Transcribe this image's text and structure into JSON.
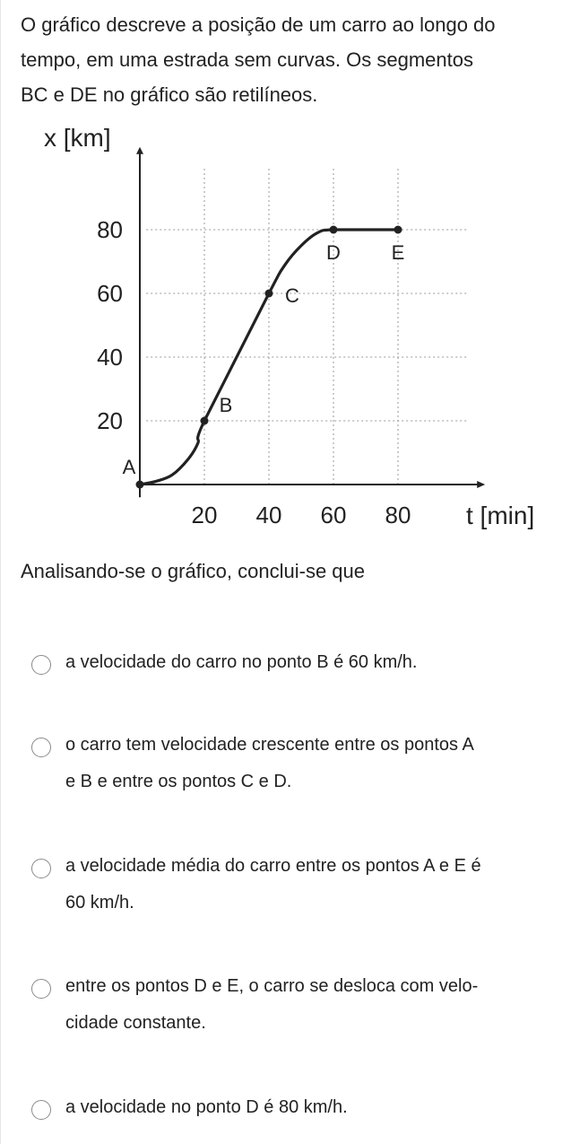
{
  "question": {
    "lines": [
      "O gráfico descreve a posição de um carro ao longo do",
      "tempo, em uma estrada sem curvas. Os segmentos",
      "BC e DE no gráfico são retilíneos."
    ]
  },
  "chart_data": {
    "type": "line",
    "xlabel": "t [min]",
    "ylabel": "x [km]",
    "x_ticks": [
      "20",
      "40",
      "60",
      "80"
    ],
    "y_ticks": [
      "20",
      "40",
      "60",
      "80"
    ],
    "xlim": [
      0,
      107
    ],
    "ylim": [
      0,
      106
    ],
    "grid": true,
    "series": [
      {
        "x": [
          0,
          5,
          10,
          15,
          18,
          20,
          40,
          45,
          50,
          55,
          60,
          80
        ],
        "y": [
          0,
          1,
          3,
          8,
          13,
          20,
          60,
          69,
          75,
          79,
          80,
          80
        ]
      }
    ],
    "points": [
      {
        "label": "A",
        "x": 0,
        "y": 0
      },
      {
        "label": "B",
        "x": 20,
        "y": 20
      },
      {
        "label": "C",
        "x": 40,
        "y": 60
      },
      {
        "label": "D",
        "x": 60,
        "y": 80
      },
      {
        "label": "E",
        "x": 80,
        "y": 80
      }
    ]
  },
  "prompt": "Analisando-se o gráfico, conclui-se que",
  "options": [
    {
      "lines": [
        "a velocidade do carro no ponto B é 60 km/h."
      ]
    },
    {
      "lines": [
        "o carro tem velocidade crescente entre os pontos A",
        "e B e entre os pontos C e D."
      ]
    },
    {
      "lines": [
        "a velocidade média do carro entre os pontos A e E é",
        "60 km/h."
      ]
    },
    {
      "lines": [
        "entre os pontos D e E, o carro se desloca com velo-",
        "cidade constante."
      ]
    },
    {
      "lines": [
        "a velocidade no ponto D é 80 km/h."
      ]
    }
  ]
}
